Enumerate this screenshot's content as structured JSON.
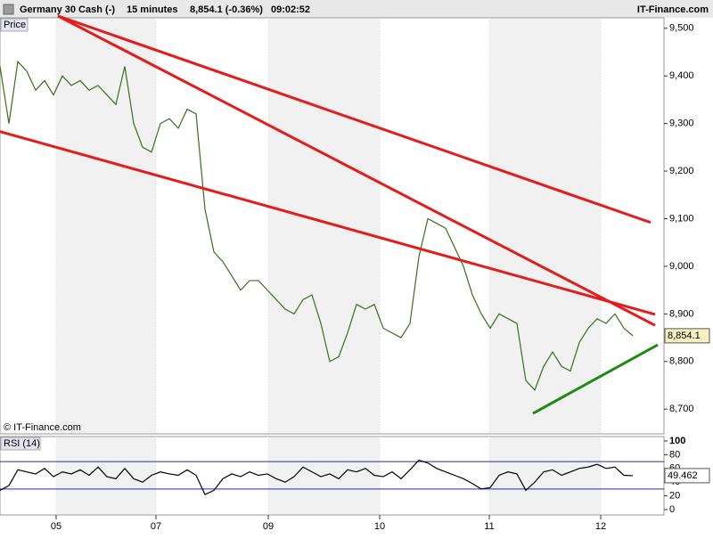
{
  "header": {
    "title": "Germany 30 Cash (-)",
    "interval": "15 minutes",
    "quote": "8,854.1 (-0.36%)",
    "time": "09:02:52",
    "brand": "IT-Finance.com"
  },
  "chart_data": [
    {
      "type": "line",
      "label": "Price",
      "source": "© IT-Finance.com",
      "color": "#3a6e1e",
      "x": [
        0,
        10,
        20,
        30,
        40,
        50,
        60,
        70,
        80,
        90,
        100,
        110,
        120,
        130,
        140,
        150,
        160,
        170,
        180,
        190,
        200,
        210,
        220,
        230,
        240,
        250,
        260,
        270,
        280,
        290,
        300,
        310,
        320,
        330,
        340,
        350,
        360,
        370,
        380,
        390,
        400,
        410,
        420,
        430,
        440,
        450,
        460,
        470,
        480,
        490,
        500,
        510,
        520,
        530,
        540,
        550,
        560,
        570,
        580,
        590,
        600,
        610,
        620,
        630,
        640,
        650,
        660,
        670,
        680,
        690,
        700,
        710
      ],
      "values": [
        9420,
        9300,
        9430,
        9410,
        9370,
        9390,
        9360,
        9400,
        9380,
        9390,
        9370,
        9380,
        9360,
        9340,
        9420,
        9300,
        9250,
        9240,
        9300,
        9310,
        9290,
        9330,
        9320,
        9120,
        9030,
        9010,
        8980,
        8950,
        8970,
        8970,
        8950,
        8930,
        8910,
        8900,
        8930,
        8940,
        8880,
        8800,
        8810,
        8860,
        8920,
        8910,
        8920,
        8870,
        8860,
        8850,
        8880,
        9020,
        9100,
        9090,
        9080,
        9040,
        9000,
        8940,
        8900,
        8870,
        8900,
        8890,
        8880,
        8760,
        8740,
        8790,
        8820,
        8790,
        8780,
        8840,
        8870,
        8890,
        8880,
        8900,
        8870,
        8854.1
      ],
      "last_value": {
        "value": 8854.1,
        "label": "8,854.1"
      },
      "trendlines": [
        {
          "x1": 0,
          "y1": 9283,
          "x2": 735,
          "y2": 8899,
          "color": "#e41c1c"
        },
        {
          "x1": 65,
          "y1": 9526,
          "x2": 730,
          "y2": 9092,
          "color": "#e41c1c"
        },
        {
          "x1": 65,
          "y1": 9526,
          "x2": 735,
          "y2": 8876,
          "color": "#e41c1c"
        },
        {
          "x1": 598,
          "y1": 8691,
          "x2": 738,
          "y2": 8835,
          "color": "#1e8a14"
        }
      ],
      "xlim": [
        0,
        745
      ],
      "ylim": [
        8648,
        9522
      ],
      "yticks": [
        {
          "value": 8700,
          "label": "8,700"
        },
        {
          "value": 8800,
          "label": "8,800"
        },
        {
          "value": 8900,
          "label": "8,900"
        },
        {
          "value": 9000,
          "label": "9,000"
        },
        {
          "value": 9100,
          "label": "9,100"
        },
        {
          "value": 9200,
          "label": "9,200"
        },
        {
          "value": 9300,
          "label": "9,300"
        },
        {
          "value": 9400,
          "label": "9,400"
        },
        {
          "value": 9500,
          "label": "9,500"
        }
      ],
      "xticks": [
        {
          "value": 63,
          "label": "05"
        },
        {
          "value": 175,
          "label": "07"
        },
        {
          "value": 301,
          "label": "09"
        },
        {
          "value": 426,
          "label": "10"
        },
        {
          "value": 549,
          "label": "11"
        },
        {
          "value": 674,
          "label": "12"
        }
      ]
    },
    {
      "type": "line",
      "label": "RSI (14)",
      "color": "#000000",
      "x": [
        0,
        10,
        20,
        30,
        40,
        50,
        60,
        70,
        80,
        90,
        100,
        110,
        120,
        130,
        140,
        150,
        160,
        170,
        180,
        190,
        200,
        210,
        220,
        230,
        240,
        250,
        260,
        270,
        280,
        290,
        300,
        310,
        320,
        330,
        340,
        350,
        360,
        370,
        380,
        390,
        400,
        410,
        420,
        430,
        440,
        450,
        460,
        470,
        480,
        490,
        500,
        510,
        520,
        530,
        540,
        550,
        560,
        570,
        580,
        590,
        600,
        610,
        620,
        630,
        640,
        650,
        660,
        670,
        680,
        690,
        700,
        710
      ],
      "values": [
        28,
        35,
        58,
        55,
        52,
        60,
        48,
        55,
        52,
        58,
        50,
        62,
        48,
        45,
        60,
        45,
        40,
        50,
        55,
        52,
        50,
        58,
        50,
        22,
        28,
        45,
        52,
        48,
        55,
        50,
        52,
        45,
        40,
        48,
        62,
        55,
        48,
        52,
        45,
        58,
        55,
        60,
        50,
        48,
        55,
        45,
        58,
        72,
        68,
        60,
        55,
        50,
        45,
        38,
        30,
        32,
        50,
        55,
        52,
        28,
        40,
        55,
        58,
        50,
        55,
        60,
        62,
        66,
        60,
        62,
        50,
        49.462
      ],
      "last_value": {
        "value": 49.462,
        "label": "49.462"
      },
      "levels": [
        70,
        30
      ],
      "xlim": [
        0,
        745
      ],
      "ylim": [
        -7.8,
        106.5
      ],
      "yticks": [
        0,
        20,
        40,
        60,
        80,
        100
      ]
    }
  ]
}
